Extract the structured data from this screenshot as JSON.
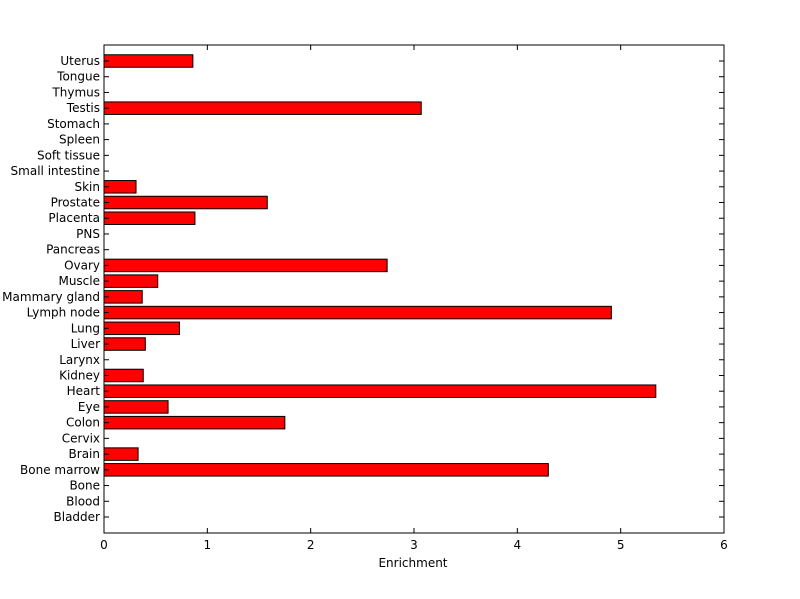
{
  "chart_data": {
    "type": "bar",
    "orientation": "horizontal",
    "xlabel": "Enrichment",
    "ylabel": "",
    "title": "",
    "xlim": [
      0,
      6
    ],
    "xticks": [
      0,
      1,
      2,
      3,
      4,
      5,
      6
    ],
    "grid": false,
    "bar_color": "#ff0000",
    "bar_edge_color": "#000000",
    "categories": [
      "Uterus",
      "Tongue",
      "Thymus",
      "Testis",
      "Stomach",
      "Spleen",
      "Soft tissue",
      "Small intestine",
      "Skin",
      "Prostate",
      "Placenta",
      "PNS",
      "Pancreas",
      "Ovary",
      "Muscle",
      "Mammary gland",
      "Lymph node",
      "Lung",
      "Liver",
      "Larynx",
      "Kidney",
      "Heart",
      "Eye",
      "Colon",
      "Cervix",
      "Brain",
      "Bone marrow",
      "Bone",
      "Blood",
      "Bladder"
    ],
    "values": [
      0.86,
      0,
      0,
      3.07,
      0,
      0,
      0,
      0,
      0.31,
      1.58,
      0.88,
      0,
      0,
      2.74,
      0.52,
      0.37,
      4.91,
      0.73,
      0.4,
      0,
      0.38,
      5.34,
      0.62,
      1.75,
      0,
      0.33,
      4.3,
      0,
      0,
      0
    ]
  }
}
